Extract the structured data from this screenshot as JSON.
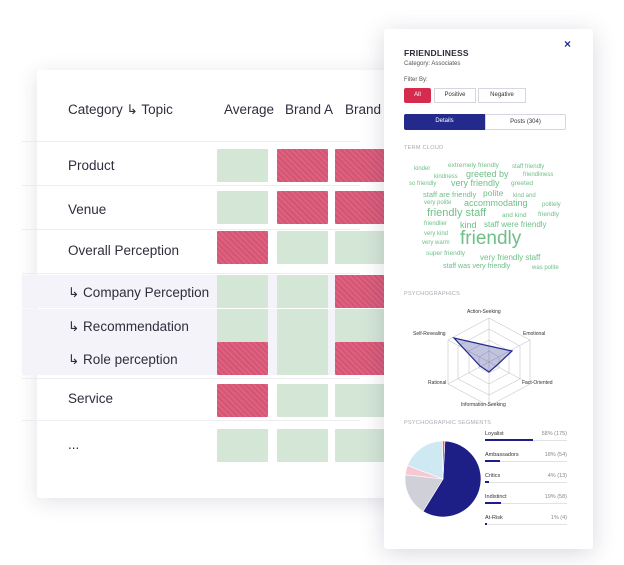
{
  "matrix": {
    "header_category": "Category ↳ Topic",
    "columns": [
      "Average",
      "Brand A",
      "Brand B"
    ],
    "rows": [
      {
        "label": "Product",
        "cells": [
          "green",
          "red",
          "red"
        ]
      },
      {
        "label": "Venue",
        "cells": [
          "green",
          "red",
          "red"
        ]
      },
      {
        "label": "Overall Perception",
        "cells": [
          "red",
          "green",
          "green"
        ]
      },
      {
        "label": "↳ Company Perception",
        "cells": [
          "green",
          "green",
          "red"
        ]
      },
      {
        "label": "↳ Recommendation",
        "cells": [
          "green",
          "green",
          "green"
        ]
      },
      {
        "label": "↳ Role perception",
        "cells": [
          "red",
          "green",
          "red"
        ]
      },
      {
        "label": "Service",
        "cells": [
          "red",
          "green",
          "green"
        ]
      },
      {
        "label": "...",
        "cells": [
          "green",
          "green",
          "green"
        ]
      }
    ],
    "colors": {
      "green": "#d4e6d6",
      "red": "#dc5878"
    }
  },
  "panel": {
    "title": "FRIENDLINESS",
    "subtitle": "Category: Associates",
    "close_icon": "×",
    "filter_label": "Filter By:",
    "filters": [
      "All",
      "Positive",
      "Negative"
    ],
    "tabs": [
      "Details",
      "Posts (304)"
    ],
    "term_cloud_label": "TERM CLOUD",
    "terms": [
      "kinder",
      "extremely friendly",
      "staff friendly",
      "kindness",
      "greeted by",
      "friendliness",
      "so friendly",
      "very friendly",
      "greeted",
      "staff are friendly",
      "polite",
      "kind and",
      "very polite",
      "accommodating",
      "politely",
      "friendly staff",
      "and kind",
      "friendly",
      "friendlier",
      "kind",
      "staff were friendly",
      "very kind",
      "very warm",
      "friendly",
      "super friendly",
      "very friendly staff",
      "staff was very friendly",
      "was polite"
    ],
    "psychographics_label": "PSYCHOGRAPHICS",
    "radar_axes": [
      "Action-Seeking",
      "Emotional",
      "Fact-Oriented",
      "Information-Seeking",
      "Rational",
      "Self-Revealing"
    ],
    "segments_label": "PSYCHOGRAPHIC SEGMENTS",
    "segments": [
      {
        "name": "Loyalist",
        "value": "58% (175)",
        "pct": 58,
        "color": "#1d1f86"
      },
      {
        "name": "Ambassadors",
        "value": "18% (54)",
        "pct": 18,
        "color": "#d0d0d8"
      },
      {
        "name": "Critics",
        "value": "4% (13)",
        "pct": 4,
        "color": "#f6c9d2"
      },
      {
        "name": "Indistinct",
        "value": "19% (58)",
        "pct": 19,
        "color": "#cfe9f2"
      },
      {
        "name": "At-Risk",
        "value": "1% (4)",
        "pct": 1,
        "color": "#e0607e"
      }
    ],
    "accent": "#d52b4f",
    "brand": "#242a8c"
  }
}
